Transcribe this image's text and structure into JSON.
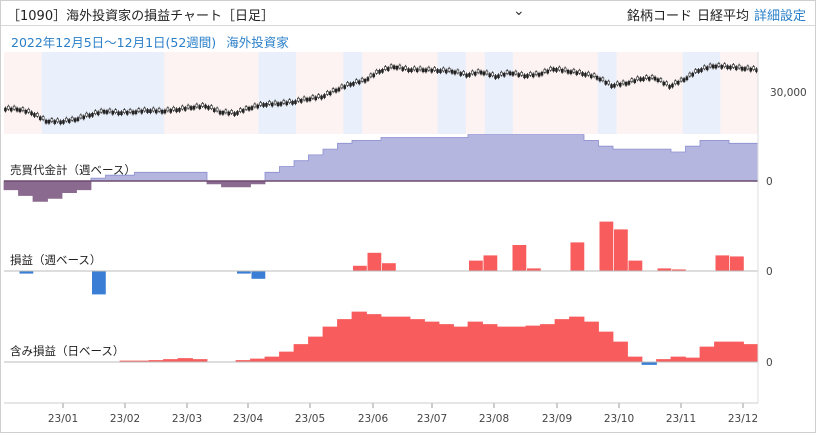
{
  "header": {
    "title": "［1090］海外投資家の損益チャート［日足］",
    "options": [
      "銘柄コード",
      "日経平均",
      "詳細設定"
    ]
  },
  "subtitle": {
    "period": "2022年12月5日〜12月1日(52週間)",
    "investor": "海外投資家"
  },
  "chart_data": {
    "type": "line",
    "x_ticks": [
      "23/01",
      "23/02",
      "23/03",
      "23/04",
      "23/05",
      "23/06",
      "23/07",
      "23/08",
      "23/09",
      "23/10",
      "23/11",
      "23/12"
    ],
    "panels": [
      {
        "label": "",
        "type": "candlestick",
        "y_ticks": [
          "30,000"
        ],
        "approx_close": [
          27800,
          27300,
          26200,
          26100,
          26400,
          27000,
          27500,
          27300,
          27400,
          27600,
          27500,
          27700,
          28000,
          28200,
          27400,
          27200,
          27900,
          28400,
          28500,
          28700,
          29100,
          29400,
          30300,
          31100,
          31600,
          32800,
          33400,
          33000,
          33000,
          32900,
          32800,
          32300,
          32700,
          32100,
          32600,
          32200,
          32400,
          33100,
          32800,
          32500,
          32000,
          30900,
          31200,
          31800,
          31900,
          30800,
          31700,
          32900,
          33500,
          33400,
          33200,
          33000
        ]
      },
      {
        "label": "売買代金計（週ベース）",
        "type": "area",
        "y_ticks": [
          "0"
        ],
        "values": [
          -3,
          -5,
          -7,
          -6,
          -4,
          -3,
          1,
          2,
          2,
          3,
          3,
          3,
          3,
          3,
          -1,
          -2,
          -2,
          -1,
          3,
          5,
          7,
          9,
          11,
          13,
          14,
          14,
          15,
          15,
          15,
          15,
          15,
          15,
          16,
          16,
          16,
          16,
          16,
          16,
          16,
          16,
          14,
          12,
          11,
          11,
          11,
          11,
          10,
          12,
          14,
          14,
          13,
          13
        ]
      },
      {
        "label": "損益（週ベース）",
        "type": "bar",
        "y_ticks": [
          "0"
        ],
        "values": [
          0,
          -0.5,
          0,
          0,
          0,
          0,
          -4.5,
          0,
          0,
          0,
          0,
          0,
          0,
          0,
          0,
          0,
          -0.5,
          -1.5,
          0,
          0,
          0,
          0,
          0,
          0,
          1,
          3.5,
          1.5,
          0,
          0,
          0,
          0,
          0,
          2,
          3,
          0,
          5,
          0.5,
          0,
          0,
          5.5,
          0,
          9.5,
          8,
          2,
          0,
          0.5,
          0.3,
          0,
          0,
          3,
          2.8,
          0
        ]
      },
      {
        "label": "含み損益（日ベース）",
        "type": "area",
        "y_ticks": [
          "0"
        ],
        "values": [
          0,
          0,
          0,
          0,
          0,
          0,
          0,
          0,
          0.2,
          0.2,
          0.3,
          0.5,
          0.7,
          0.5,
          0,
          0,
          0.3,
          0.6,
          1.0,
          2.0,
          3.5,
          5.0,
          7.0,
          8.5,
          10.0,
          9.5,
          9.0,
          9.0,
          8.5,
          8.0,
          7.5,
          7.0,
          8.0,
          7.5,
          7.0,
          7.0,
          7.2,
          7.5,
          8.5,
          9.0,
          8.0,
          6.0,
          4.0,
          1.0,
          -0.5,
          0.5,
          1.0,
          0.8,
          3.0,
          4.0,
          4.0,
          3.5
        ]
      }
    ],
    "colors": {
      "candle": "#222222",
      "highlight": "#eaf0fb",
      "pink": "#fdf3f3",
      "volume": "#b5b6e0",
      "volume_neg": "#8a6a8e",
      "profit": "#f85c5c",
      "loss": "#3a7fd5"
    }
  }
}
